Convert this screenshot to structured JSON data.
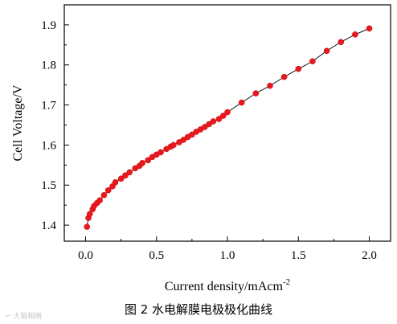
{
  "caption": "图 2  水电解膜电极极化曲线",
  "watermark": "⌐ 大脑相册",
  "chart_data": {
    "type": "line",
    "xlabel_text": "Current density/mAcm",
    "xlabel_sup": "-2",
    "ylabel": "Cell Voltage/V",
    "xlim": [
      -0.15,
      2.15
    ],
    "ylim": [
      1.36,
      1.95
    ],
    "xticks": [
      0.0,
      0.5,
      1.0,
      1.5,
      2.0
    ],
    "xtick_labels": [
      "0.0",
      "0.5",
      "1.0",
      "1.5",
      "2.0"
    ],
    "yticks": [
      1.4,
      1.5,
      1.6,
      1.7,
      1.8,
      1.9
    ],
    "ytick_labels": [
      "1.4",
      "1.5",
      "1.6",
      "1.7",
      "1.8",
      "1.9"
    ],
    "grid": false,
    "series": [
      {
        "marker_color": "#e8181f",
        "line_color": "#000000",
        "x": [
          0.01,
          0.02,
          0.03,
          0.05,
          0.06,
          0.08,
          0.1,
          0.13,
          0.16,
          0.19,
          0.21,
          0.25,
          0.28,
          0.31,
          0.35,
          0.38,
          0.4,
          0.44,
          0.47,
          0.5,
          0.53,
          0.57,
          0.6,
          0.62,
          0.66,
          0.69,
          0.72,
          0.75,
          0.78,
          0.81,
          0.84,
          0.87,
          0.9,
          0.94,
          0.97,
          1.0,
          1.1,
          1.2,
          1.3,
          1.4,
          1.5,
          1.6,
          1.7,
          1.8,
          1.9,
          2.0
        ],
        "y": [
          1.396,
          1.418,
          1.428,
          1.44,
          1.448,
          1.455,
          1.462,
          1.475,
          1.487,
          1.497,
          1.507,
          1.516,
          1.524,
          1.532,
          1.542,
          1.548,
          1.555,
          1.562,
          1.57,
          1.576,
          1.582,
          1.59,
          1.596,
          1.6,
          1.607,
          1.613,
          1.62,
          1.626,
          1.633,
          1.639,
          1.645,
          1.652,
          1.659,
          1.665,
          1.673,
          1.682,
          1.706,
          1.729,
          1.748,
          1.77,
          1.79,
          1.809,
          1.835,
          1.857,
          1.876,
          1.891
        ]
      }
    ]
  }
}
